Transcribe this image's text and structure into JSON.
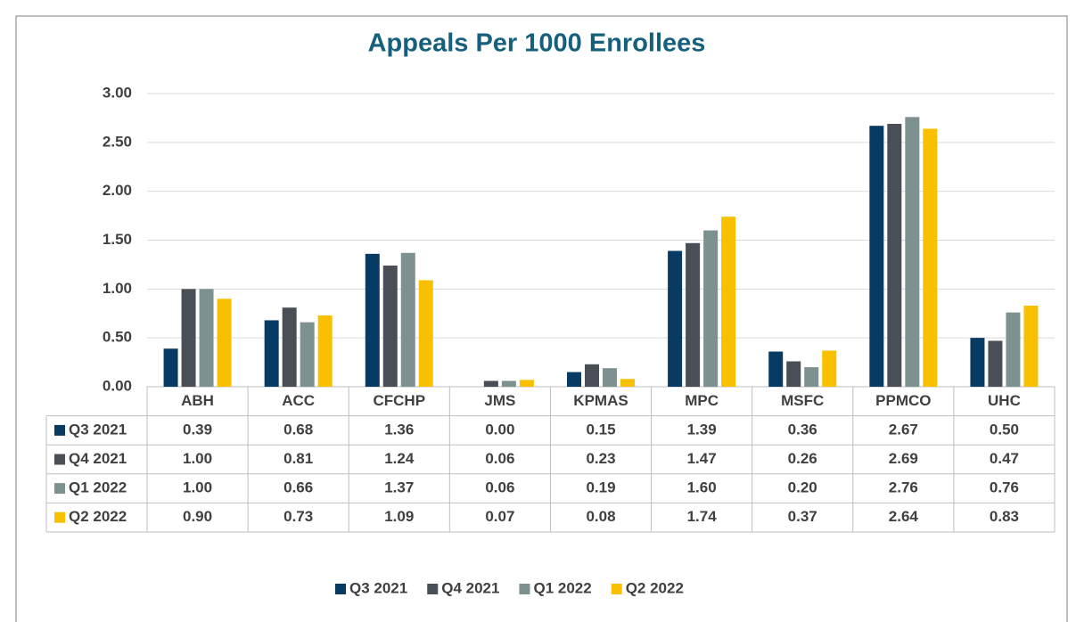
{
  "chart_data": {
    "type": "bar",
    "title": "Appeals Per 1000 Enrollees",
    "categories": [
      "ABH",
      "ACC",
      "CFCHP",
      "JMS",
      "KPMAS",
      "MPC",
      "MSFC",
      "PPMCO",
      "UHC"
    ],
    "series": [
      {
        "name": "Q3 2021",
        "color": "#073b63",
        "values": [
          0.39,
          0.68,
          1.36,
          0.0,
          0.15,
          1.39,
          0.36,
          2.67,
          0.5
        ],
        "value_labels": [
          "0.39",
          "0.68",
          "1.36",
          "0.00",
          "0.15",
          "1.39",
          "0.36",
          "2.67",
          "0.50"
        ]
      },
      {
        "name": "Q4 2021",
        "color": "#4a4e56",
        "values": [
          1.0,
          0.81,
          1.24,
          0.06,
          0.23,
          1.47,
          0.26,
          2.69,
          0.47
        ],
        "value_labels": [
          "1.00",
          "0.81",
          "1.24",
          "0.06",
          "0.23",
          "1.47",
          "0.26",
          "2.69",
          "0.47"
        ]
      },
      {
        "name": "Q1 2022",
        "color": "#7e9191",
        "values": [
          1.0,
          0.66,
          1.37,
          0.06,
          0.19,
          1.6,
          0.2,
          2.76,
          0.76
        ],
        "value_labels": [
          "1.00",
          "0.66",
          "1.37",
          "0.06",
          "0.19",
          "1.60",
          "0.20",
          "2.76",
          "0.76"
        ]
      },
      {
        "name": "Q2 2022",
        "color": "#f8c000",
        "values": [
          0.9,
          0.73,
          1.09,
          0.07,
          0.08,
          1.74,
          0.37,
          2.64,
          0.83
        ],
        "value_labels": [
          "0.90",
          "0.73",
          "1.09",
          "0.07",
          "0.08",
          "1.74",
          "0.37",
          "2.64",
          "0.83"
        ]
      }
    ],
    "ylim": [
      0,
      3
    ],
    "yticks": [
      {
        "value": 0,
        "label": "0.00"
      },
      {
        "value": 0.5,
        "label": "0.50"
      },
      {
        "value": 1,
        "label": "1.00"
      },
      {
        "value": 1.5,
        "label": "1.50"
      },
      {
        "value": 2,
        "label": "2.00"
      },
      {
        "value": 2.5,
        "label": "2.50"
      },
      {
        "value": 3,
        "label": "3.00"
      }
    ],
    "grid": true,
    "legend": "bottom"
  }
}
